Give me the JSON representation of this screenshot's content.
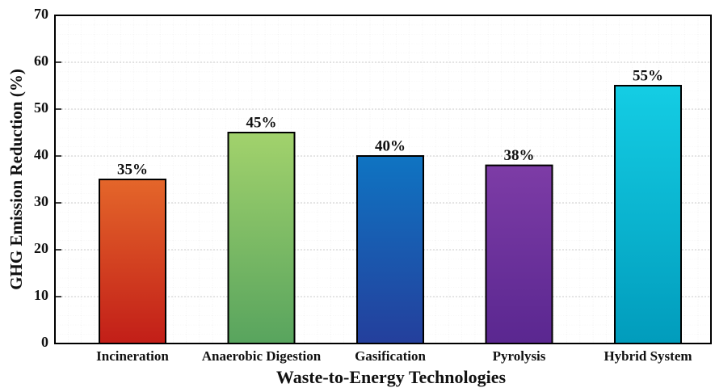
{
  "chart_data": {
    "type": "bar",
    "xlabel": "Waste-to-Energy Technologies",
    "ylabel": "GHG Emission Reduction (%)",
    "categories": [
      "Incineration",
      "Anaerobic Digestion",
      "Gasification",
      "Pyrolysis",
      "Hybrid System"
    ],
    "values": [
      35,
      45,
      40,
      38,
      55
    ],
    "value_labels": [
      "35%",
      "45%",
      "40%",
      "38%",
      "55%"
    ],
    "colors": [
      [
        "#e4662a",
        "#c21e18"
      ],
      [
        "#a2d26c",
        "#58a45e"
      ],
      [
        "#0f74c2",
        "#243f9c"
      ],
      [
        "#7d3ca6",
        "#5a2790"
      ],
      [
        "#14cde4",
        "#019cbc"
      ]
    ],
    "ylim": [
      0,
      70
    ],
    "yticks": [
      0,
      10,
      20,
      30,
      40,
      50,
      60,
      70
    ],
    "grid": true
  }
}
